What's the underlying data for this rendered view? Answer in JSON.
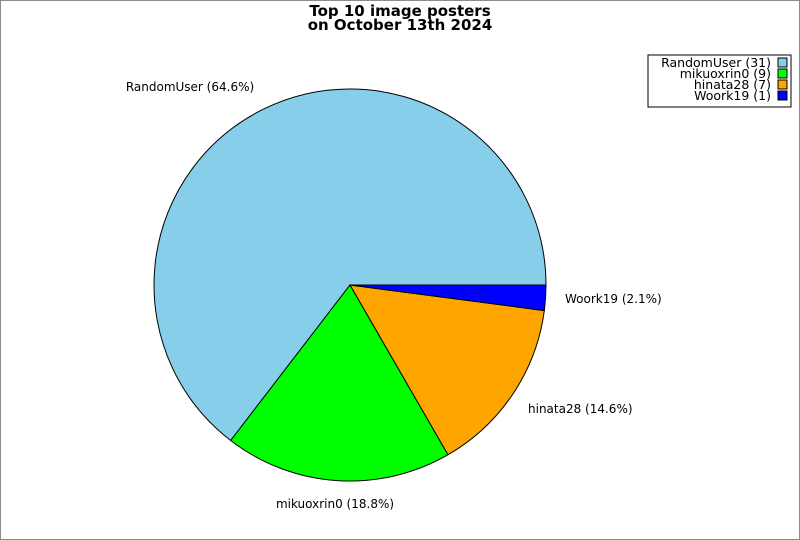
{
  "chart_data": {
    "type": "pie",
    "title_lines": [
      "Top 10 image posters",
      "on October 13th 2024"
    ],
    "slices": [
      {
        "name": "RandomUser",
        "value": 31,
        "percent_label": "RandomUser (64.6%)",
        "legend_label": "RandomUser (31)",
        "color": "#87CEEB"
      },
      {
        "name": "mikuoxrin0",
        "value": 9,
        "percent_label": "mikuoxrin0 (18.8%)",
        "legend_label": "mikuoxrin0 (9)",
        "color": "#00FF00"
      },
      {
        "name": "hinata28",
        "value": 7,
        "percent_label": "hinata28 (14.6%)",
        "legend_label": "hinata28 (7)",
        "color": "#FFA500"
      },
      {
        "name": "Woork19",
        "value": 1,
        "percent_label": "Woork19 (2.1%)",
        "legend_label": "Woork19 (1)",
        "color": "#0000FF"
      }
    ],
    "legend_position": "top-right"
  }
}
